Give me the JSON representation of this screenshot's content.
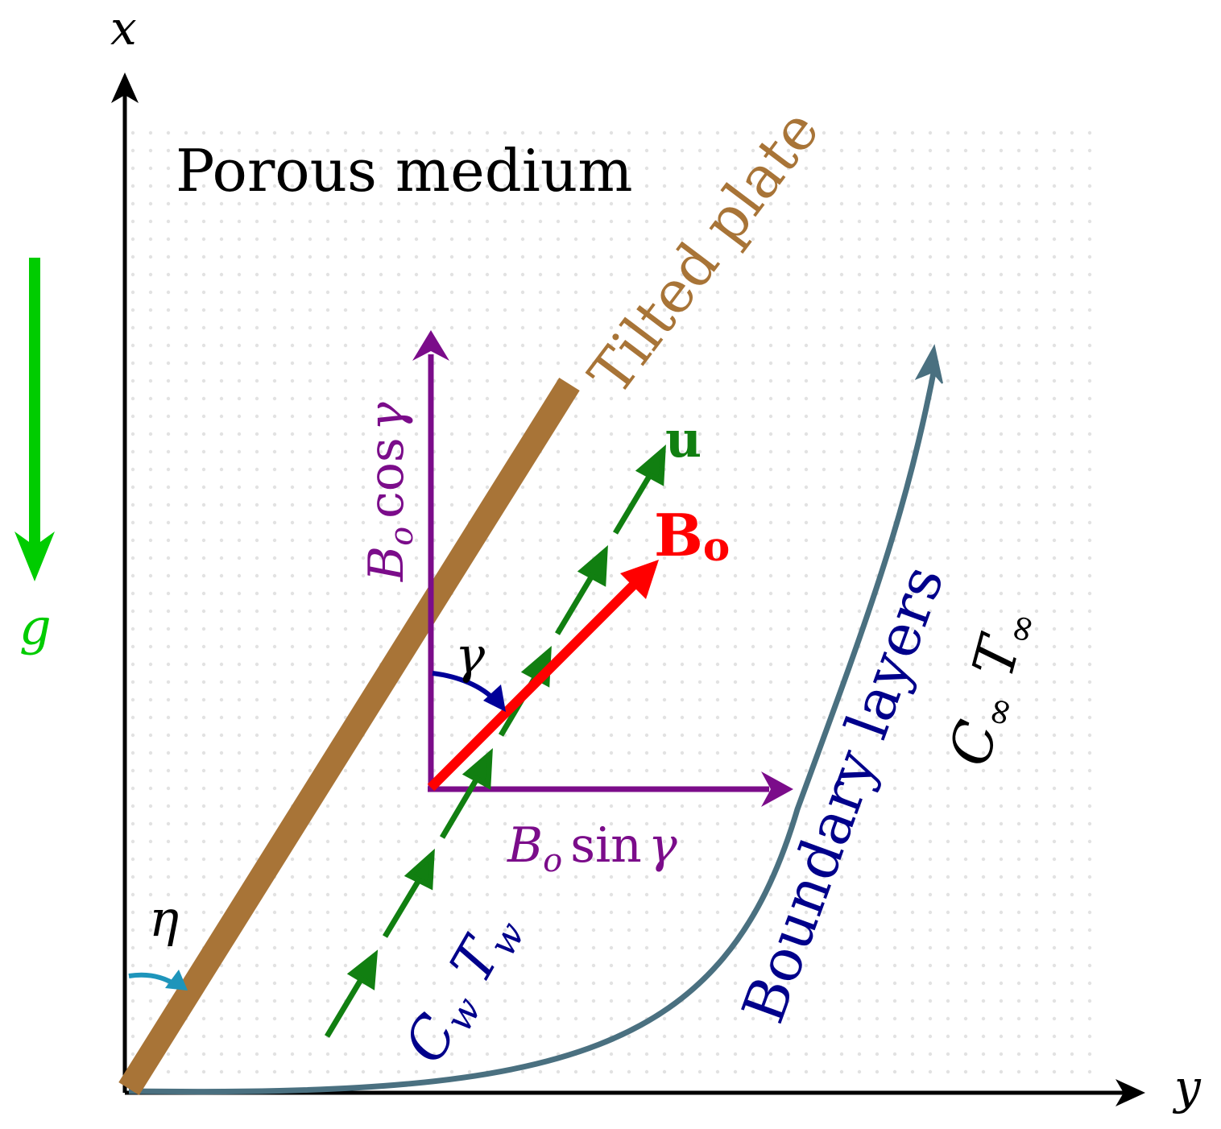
{
  "title": "Porous medium",
  "axes": {
    "x_label": "x",
    "y_label": "y"
  },
  "labels": {
    "gravity": "g",
    "plate": "Tilted plate",
    "velocity": "u",
    "field": "B",
    "field_sub": "o",
    "field_cos": {
      "B": "B",
      "sub": "o",
      "fn": "cos",
      "angle": "γ"
    },
    "field_sin": {
      "B": "B",
      "sub": "o",
      "fn": "sin",
      "angle": "γ"
    },
    "gamma": "γ",
    "eta": "η",
    "wall": {
      "C": "C",
      "C_sub": "w",
      "T": "T",
      "T_sub": "w"
    },
    "freestream": {
      "C": "C",
      "C_sub": "∞",
      "T": "T",
      "T_sub": "∞"
    },
    "boundary": "Boundary layers"
  },
  "colors": {
    "axis": "#000000",
    "gravity": "#00cc00",
    "plate": "#a87437",
    "velocity": "#117f11",
    "field": "#ff0000",
    "components": "#7b0c8a",
    "angle": "#000099",
    "eta": "#1e95bb",
    "boundary_curve": "#4a7080",
    "boundary_text": "#00008b",
    "dots": "#dcdcdc"
  }
}
